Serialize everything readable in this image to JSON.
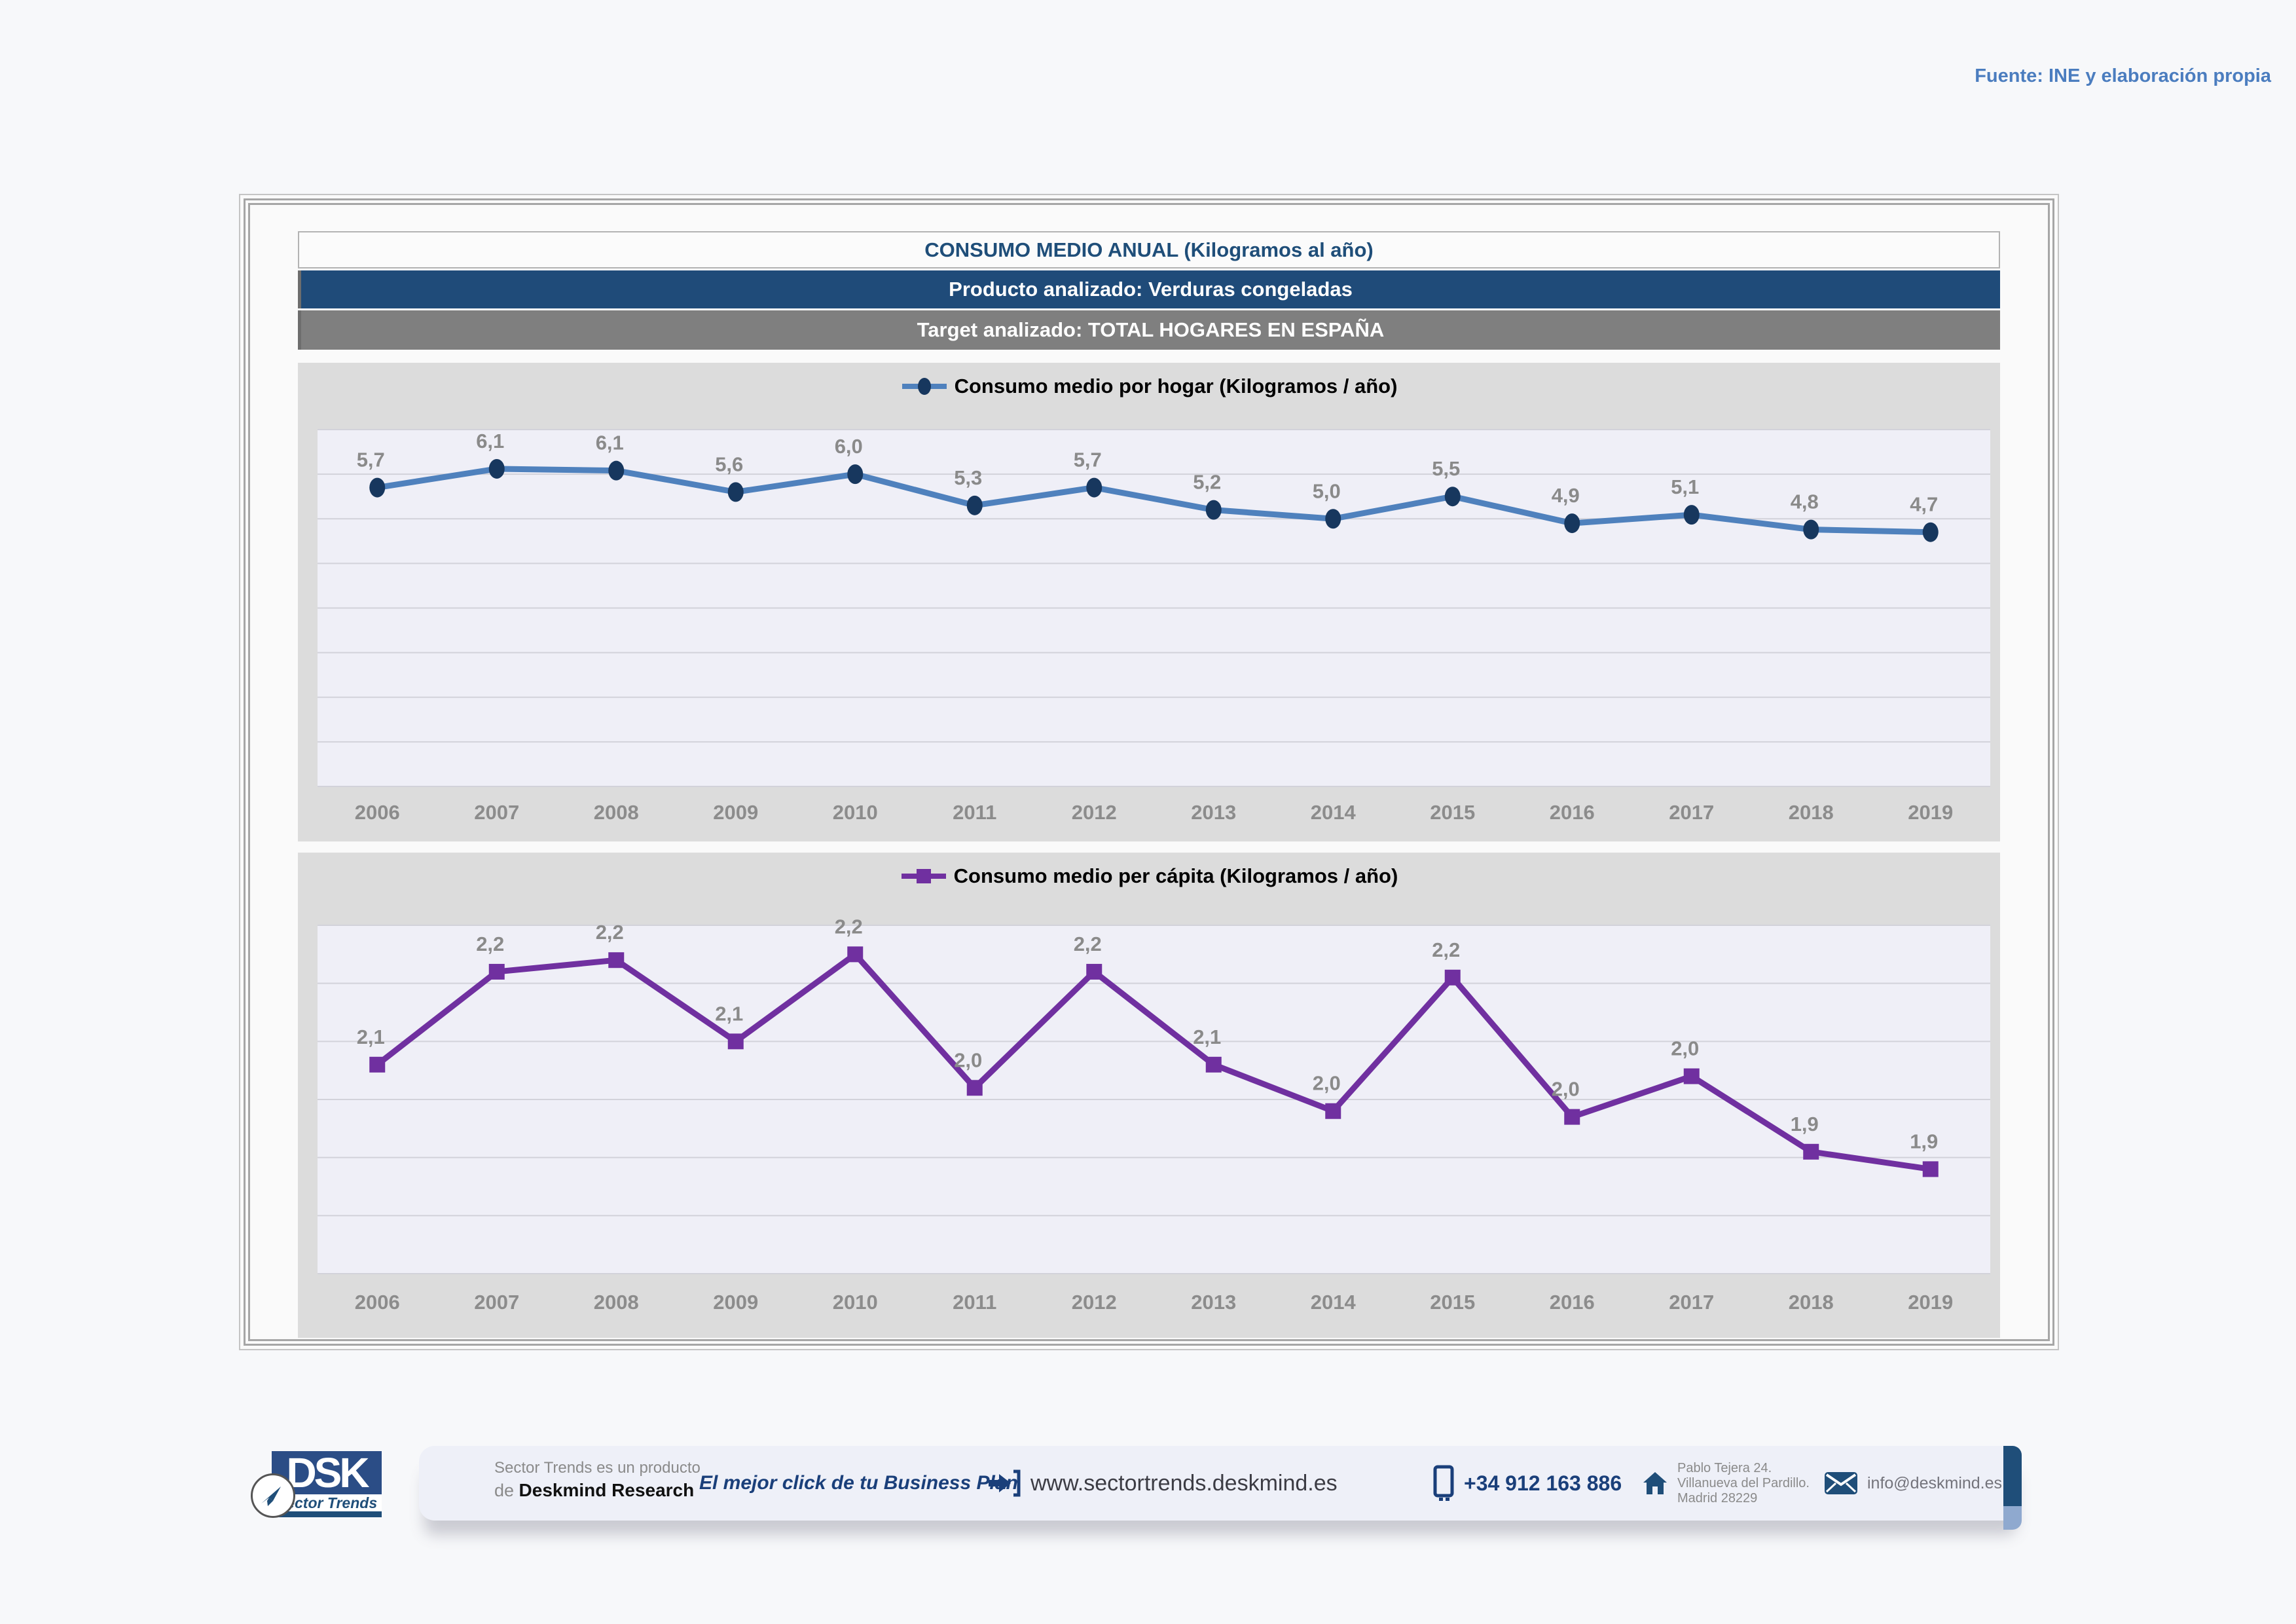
{
  "source_note": "Fuente: INE y elaboración propia",
  "panel": {
    "title": "CONSUMO MEDIO ANUAL (Kilogramos al año)",
    "product": "Producto analizado: Verduras congeladas",
    "target": "Target analizado: TOTAL HOGARES EN ESPAÑA"
  },
  "chart_data": [
    {
      "type": "line",
      "title": "Consumo medio por hogar  (Kilogramos / año)",
      "legend": "Consumo medio por hogar  (Kilogramos / año)",
      "legend_position": "top",
      "categories": [
        "2006",
        "2007",
        "2008",
        "2009",
        "2010",
        "2011",
        "2012",
        "2013",
        "2014",
        "2015",
        "2016",
        "2017",
        "2018",
        "2019"
      ],
      "values": [
        5.7,
        6.1,
        6.1,
        5.6,
        6.0,
        5.3,
        5.7,
        5.2,
        5.0,
        5.5,
        4.9,
        5.1,
        4.8,
        4.7
      ],
      "value_labels": [
        "5,7",
        "6,1",
        "6,1",
        "5,6",
        "6,0",
        "5,3",
        "5,7",
        "5,2",
        "5,0",
        "5,5",
        "4,9",
        "5,1",
        "4,8",
        "4,7"
      ],
      "plot_values": [
        5.7,
        6.12,
        6.08,
        5.6,
        6.0,
        5.3,
        5.7,
        5.2,
        5.0,
        5.5,
        4.9,
        5.09,
        4.76,
        4.7
      ],
      "xlabel": "",
      "ylabel": "",
      "ylim": [
        -1,
        7
      ],
      "grid": true,
      "grid_divisions": 8,
      "line_color": "#4f81bd",
      "marker_color": "#17375e",
      "marker": "circle"
    },
    {
      "type": "line",
      "title": "Consumo medio per cápita  (Kilogramos / año)",
      "legend": "Consumo medio per cápita  (Kilogramos / año)",
      "legend_position": "top",
      "categories": [
        "2006",
        "2007",
        "2008",
        "2009",
        "2010",
        "2011",
        "2012",
        "2013",
        "2014",
        "2015",
        "2016",
        "2017",
        "2018",
        "2019"
      ],
      "values": [
        2.1,
        2.2,
        2.2,
        2.1,
        2.2,
        2.0,
        2.2,
        2.1,
        2.0,
        2.2,
        2.0,
        2.0,
        1.9,
        1.9
      ],
      "value_labels": [
        "2,1",
        "2,2",
        "2,2",
        "2,1",
        "2,2",
        "2,0",
        "2,2",
        "2,1",
        "2,0",
        "2,2",
        "2,0",
        "2,0",
        "1,9",
        "1,9"
      ],
      "plot_values": [
        2.06,
        2.22,
        2.24,
        2.1,
        2.25,
        2.02,
        2.22,
        2.06,
        1.98,
        2.21,
        1.97,
        2.04,
        1.91,
        1.88
      ],
      "xlabel": "",
      "ylabel": "",
      "ylim": [
        1.7,
        2.3
      ],
      "grid": true,
      "grid_divisions": 6,
      "line_color": "#7030a0",
      "marker_color": "#7030a0",
      "marker": "square"
    }
  ],
  "footer": {
    "product_line1": "Sector Trends es un producto",
    "product_line2_prefix": "de ",
    "product_line2_bold": "Deskmind Research",
    "claim": "El mejor click de tu Business Plan",
    "website": "www.sectortrends.deskmind.es",
    "phone": "+34 912 163 886",
    "address_line1": "Pablo Tejera 24.",
    "address_line2": "Villanueva del Pardillo.",
    "address_line3": "Madrid 28229",
    "email": "info@deskmind.es",
    "logo_acronym": "DSK",
    "logo_tagline": "Sector Trends"
  },
  "colors": {
    "navy": "#1f4e79",
    "line_blue": "#4f81bd",
    "marker_navy": "#17375e",
    "purple": "#7030a0",
    "bar_gray": "#7f7f7f",
    "label_gray": "#8a8a8a",
    "source_blue": "#4b7dbf"
  }
}
